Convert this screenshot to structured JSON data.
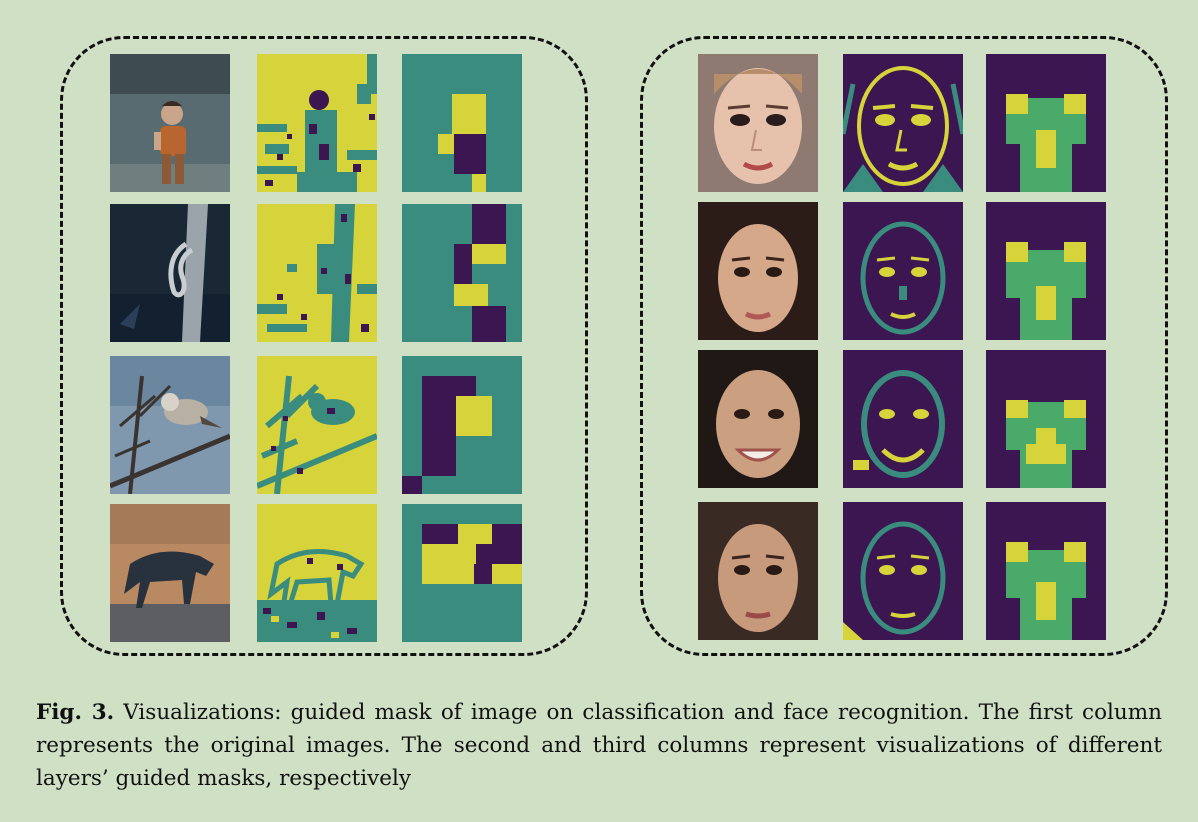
{
  "figure": {
    "caption_label": "Fig. 3.",
    "caption_text": "Visualizations: guided mask of image on classification and face recognition. The first column represents the original images. The second and third columns represent visualizations of different layers’ guided masks, respectively"
  },
  "colors": {
    "background": "#cfe0c5",
    "mask_yellow": "#d6d43a",
    "mask_teal": "#3a8d7e",
    "mask_purple": "#3b1650",
    "mask_green": "#4aaa6a"
  },
  "panels": [
    {
      "name": "classification",
      "rows": [
        "child-standing",
        "snake-on-branch",
        "bird-on-branch",
        "hyena-walking"
      ]
    },
    {
      "name": "face-recognition",
      "rows": [
        "face-1",
        "face-2",
        "face-3",
        "face-4"
      ]
    }
  ]
}
